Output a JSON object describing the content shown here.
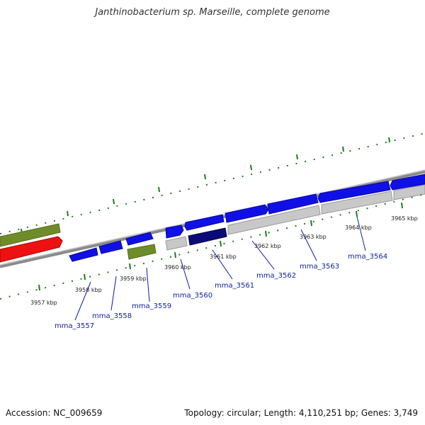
{
  "title": "Janthinobacterium sp. Marseille, complete genome",
  "footer": {
    "accession": "Accession: NC_009659",
    "summary": "Topology: circular; Length: 4,110,251 bp; Genes: 3,749"
  },
  "kbp_labels": [
    "3957 kbp",
    "3958 kbp",
    "3959 kbp",
    "3960 kbp",
    "3961 kbp",
    "3962 kbp",
    "3963 kbp",
    "3964 kbp",
    "3965 kbp"
  ],
  "gene_labels": [
    "mma_3557",
    "mma_3558",
    "mma_3559",
    "mma_3560",
    "mma_3561",
    "mma_3562",
    "mma_3563",
    "mma_3564"
  ],
  "colors": {
    "blue_gene": "#1010e6",
    "dark_blue_gene": "#0b0b78",
    "green_gene": "#6f8c2a",
    "red_gene": "#ee1111",
    "gray_feature": "#c8c8c8",
    "backbone": "#8a8a8a",
    "ticks": "#1f7a1f",
    "label": "#0b1e9a"
  }
}
